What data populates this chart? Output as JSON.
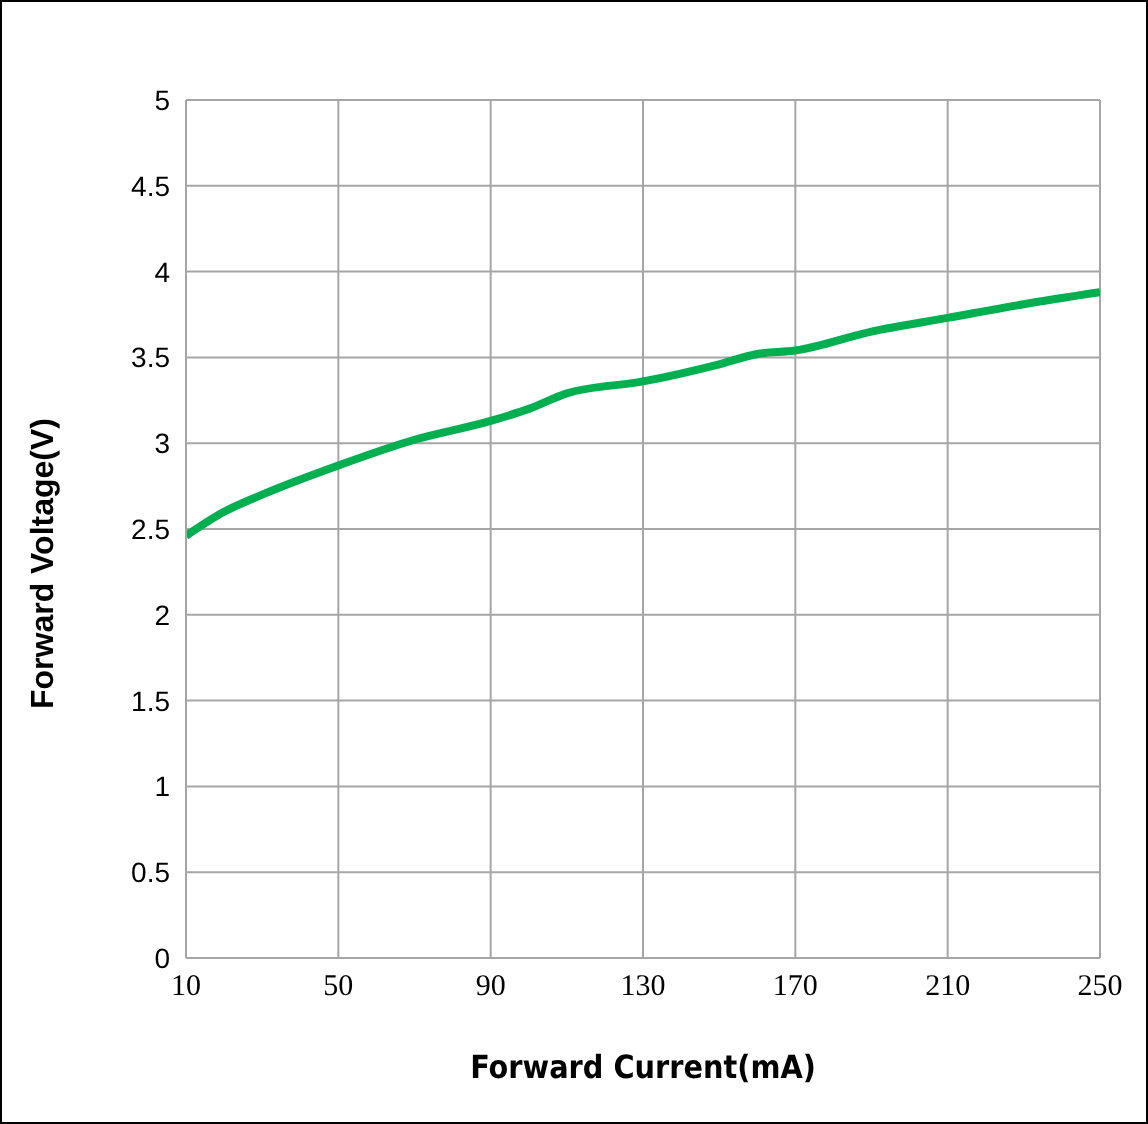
{
  "chart_data": {
    "type": "line",
    "xlabel": "Forward Current(mA)",
    "ylabel": "Forward Voltage(V)",
    "x": [
      10,
      20,
      30,
      50,
      70,
      90,
      100,
      110,
      130,
      150,
      160,
      170,
      190,
      210,
      230,
      250
    ],
    "series": [
      {
        "color": "#00b050",
        "values": [
          2.46,
          2.6,
          2.7,
          2.87,
          3.02,
          3.13,
          3.2,
          3.29,
          3.36,
          3.46,
          3.52,
          3.54,
          3.65,
          3.73,
          3.81,
          3.88
        ]
      }
    ],
    "xlim": [
      10,
      250
    ],
    "xticks": [
      10,
      50,
      90,
      130,
      170,
      210,
      250
    ],
    "ylim": [
      0,
      5
    ],
    "yticks": [
      0,
      0.5,
      1,
      1.5,
      2,
      2.5,
      3,
      3.5,
      4,
      4.5,
      5
    ],
    "grid": true,
    "legend": false,
    "marker": "none",
    "line_style": "solid"
  }
}
